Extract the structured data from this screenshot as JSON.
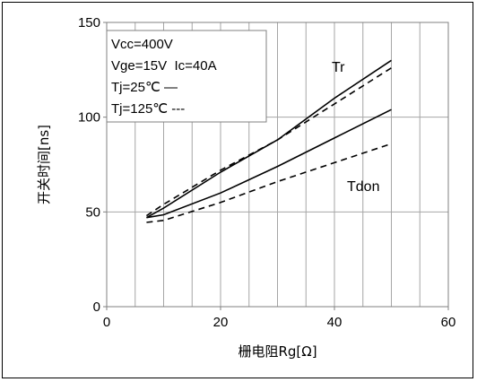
{
  "chart_data": {
    "type": "line",
    "xlabel": "栅电阻Rg[Ω]",
    "ylabel": "开关时间[ns]",
    "xlim": [
      0,
      60
    ],
    "ylim": [
      0,
      150
    ],
    "xticks": [
      0,
      20,
      40,
      60
    ],
    "yticks": [
      0,
      50,
      100,
      150
    ],
    "x_minor_grid_step": 5,
    "grid": true,
    "legend": {
      "placement": "top-left",
      "lines": [
        "Vcc=400V",
        "Vge=15V  Ic=40A",
        "Tj=25℃ —",
        "Tj=125℃ ---"
      ]
    },
    "series": [
      {
        "name": "Tr",
        "temp": "25",
        "style": "solid",
        "x": [
          7,
          10,
          20,
          30,
          40,
          50
        ],
        "y": [
          47,
          52,
          71,
          88,
          110,
          130
        ]
      },
      {
        "name": "Tr",
        "temp": "125",
        "style": "dashed",
        "x": [
          7,
          10,
          20,
          30,
          40,
          50
        ],
        "y": [
          48,
          54,
          72,
          88,
          107,
          126
        ]
      },
      {
        "name": "Tdon",
        "temp": "25",
        "style": "solid",
        "x": [
          7,
          10,
          20,
          30,
          40,
          50
        ],
        "y": [
          47,
          48.5,
          60,
          74,
          89,
          104
        ]
      },
      {
        "name": "Tdon",
        "temp": "125",
        "style": "dashed",
        "x": [
          7,
          10,
          20,
          30,
          40,
          50
        ],
        "y": [
          44.5,
          45.5,
          55,
          66,
          76,
          86
        ]
      }
    ],
    "series_labels": [
      "Tr",
      "Tdon"
    ]
  },
  "colors": {
    "line": "#000000",
    "grid": "#a6a6a6",
    "frame": "#000000"
  }
}
